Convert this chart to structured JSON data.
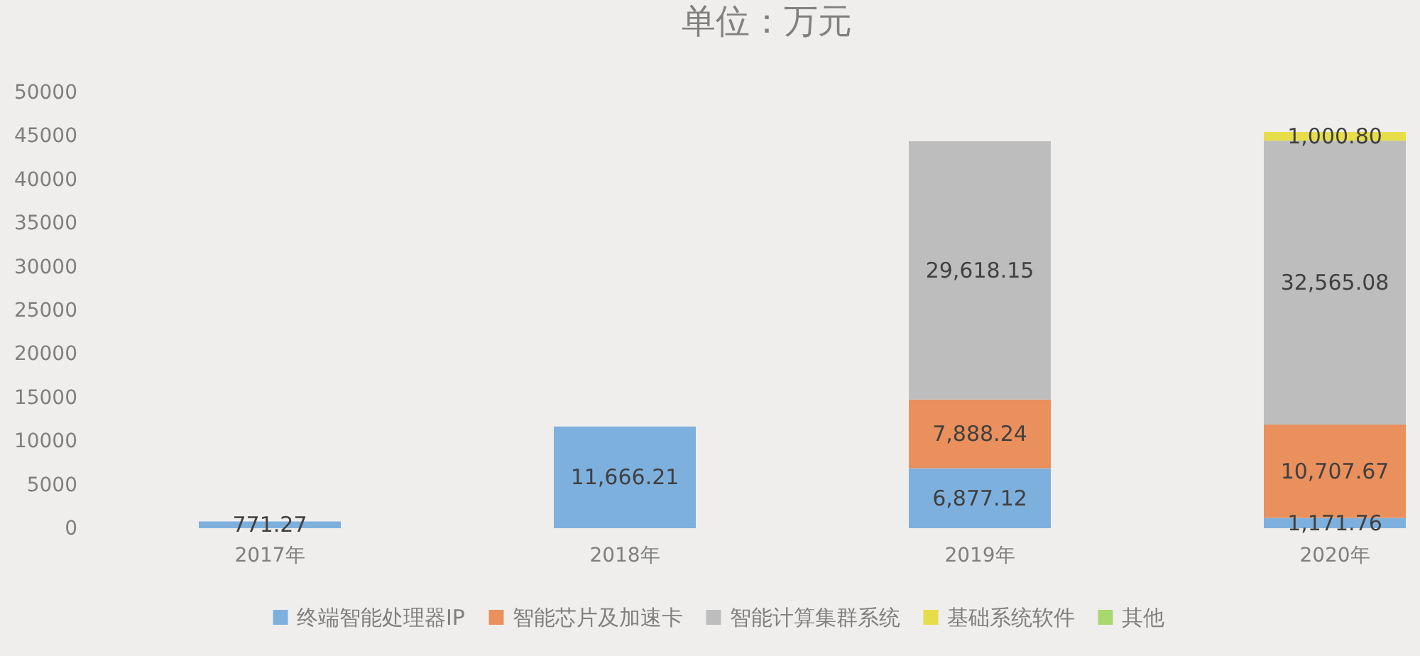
{
  "chart_data": {
    "type": "bar",
    "title": "单位：万元",
    "categories": [
      "2017年",
      "2018年",
      "2019年",
      "2020年"
    ],
    "series": [
      {
        "name": "终端智能处理器IP",
        "color": "#7eb0de",
        "values": [
          771.27,
          11666.21,
          6877.12,
          1171.76
        ],
        "value_labels": [
          "771.27",
          "11,666.21",
          "6,877.12",
          "1,171.76"
        ]
      },
      {
        "name": "智能芯片及加速卡",
        "color": "#e9905d",
        "values": [
          null,
          null,
          7888.24,
          10707.67
        ],
        "value_labels": [
          null,
          null,
          "7,888.24",
          "10,707.67"
        ]
      },
      {
        "name": "智能计算集群系统",
        "color": "#bdbdbd",
        "values": [
          null,
          null,
          29618.15,
          32565.08
        ],
        "value_labels": [
          null,
          null,
          "29,618.15",
          "32,565.08"
        ]
      },
      {
        "name": "基础系统软件",
        "color": "#e6dd4a",
        "values": [
          null,
          null,
          null,
          1000.8
        ],
        "value_labels": [
          null,
          null,
          null,
          "1,000.80"
        ]
      },
      {
        "name": "其他",
        "color": "#a9d86e",
        "values": [
          null,
          null,
          null,
          null
        ]
      }
    ],
    "stacked": true,
    "ylim": [
      0,
      50000
    ],
    "yticks": [
      0,
      5000,
      10000,
      15000,
      20000,
      25000,
      30000,
      35000,
      40000,
      45000,
      50000
    ],
    "legend": "bottom"
  }
}
